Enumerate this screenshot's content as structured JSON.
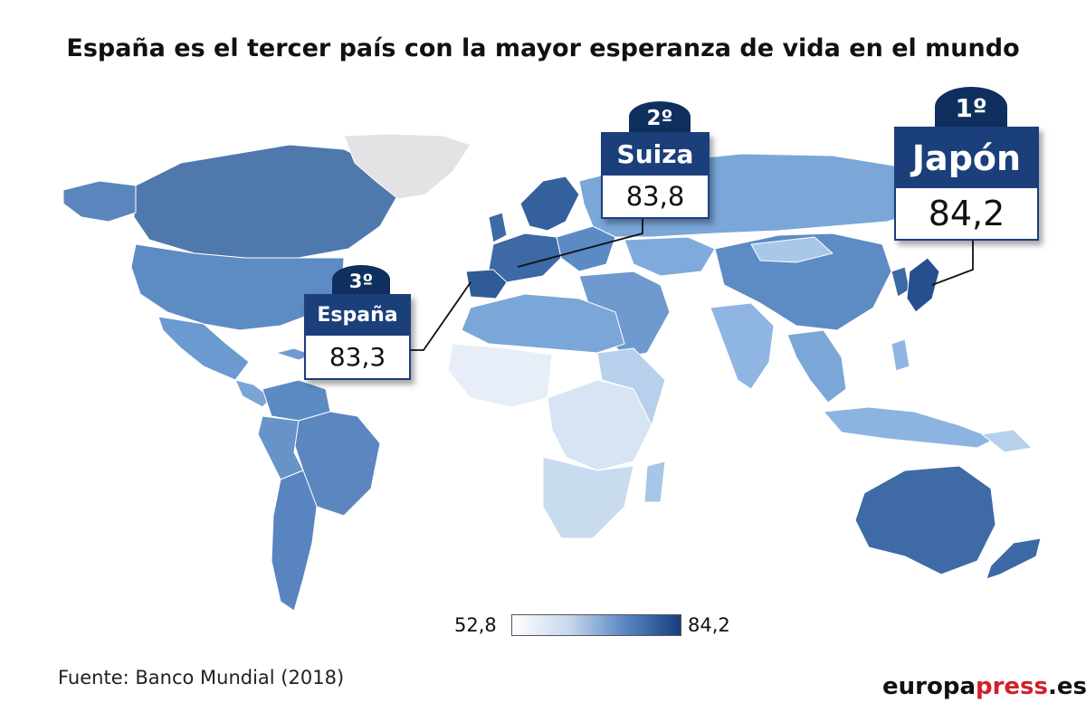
{
  "title": "España es el tercer país con la mayor esperanza de vida en el mundo",
  "callouts": [
    {
      "rank": "1º",
      "country": "Japón",
      "value": "84,2"
    },
    {
      "rank": "2º",
      "country": "Suiza",
      "value": "83,8"
    },
    {
      "rank": "3º",
      "country": "España",
      "value": "83,3"
    }
  ],
  "legend": {
    "min": "52,8",
    "max": "84,2",
    "colors": [
      "#ffffff",
      "#173f7c"
    ]
  },
  "source": "Fuente: Banco Mundial (2018)",
  "brand": {
    "part1": "europa",
    "part2": "press",
    "part3": ".es",
    "accent": "#d0202a"
  }
}
